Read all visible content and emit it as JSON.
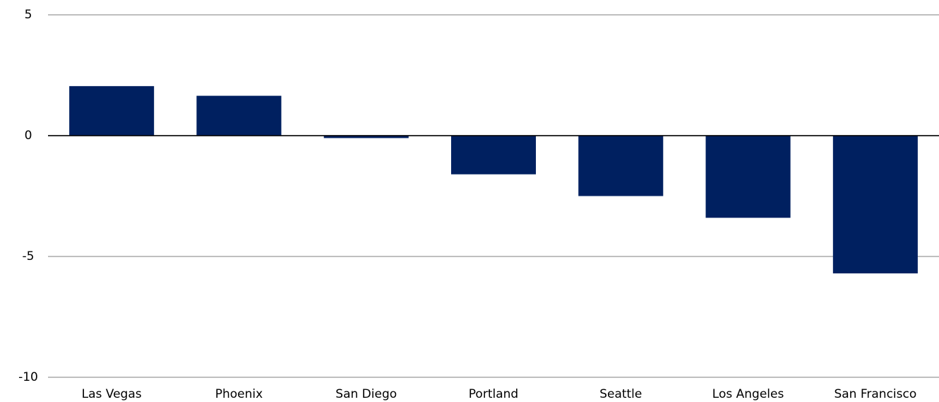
{
  "chart_data": {
    "type": "bar",
    "categories": [
      "Las Vegas",
      "Phoenix",
      "San Diego",
      "Portland",
      "Seattle",
      "Los Angeles",
      "San Francisco"
    ],
    "values": [
      2.05,
      1.65,
      -0.1,
      -1.6,
      -2.5,
      -3.4,
      -5.7
    ],
    "color": "#002060",
    "ylim": [
      -10,
      5
    ],
    "yticks": [
      5,
      0,
      -5,
      -10
    ],
    "grid": true
  }
}
